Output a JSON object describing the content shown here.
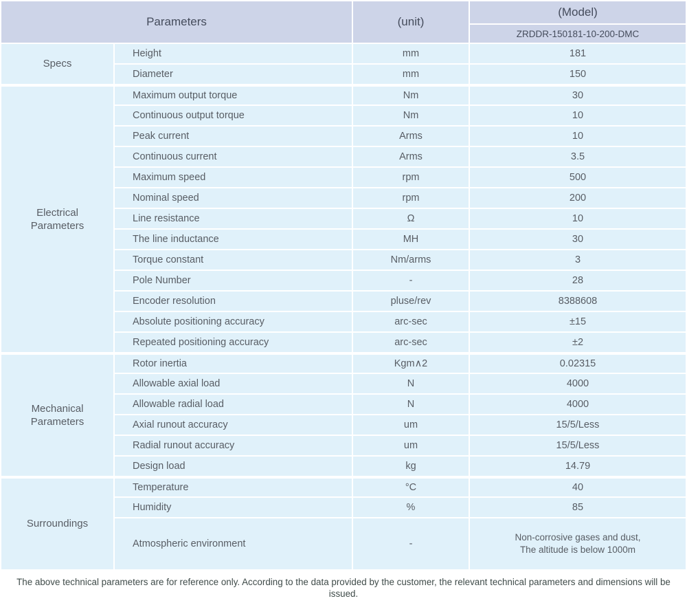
{
  "colors": {
    "header_bg": "#cdd4e8",
    "cell_bg": "#e0f1fa",
    "border": "#ffffff",
    "header_text": "#454c5c",
    "body_text": "#585d64",
    "footnote_text": "#3f4b49"
  },
  "table": {
    "header": {
      "parameters_label": "Parameters",
      "unit_label": "(unit)",
      "model_label": "(Model)",
      "model_value": "ZRDDR-150181-10-200-DMC"
    },
    "groups": [
      {
        "name": "Specs",
        "label_lines": [
          "Specs"
        ],
        "rows": [
          {
            "parameter": "Height",
            "unit": "mm",
            "value": "181"
          },
          {
            "parameter": "Diameter",
            "unit": "mm",
            "value": "150"
          }
        ]
      },
      {
        "name": "Electrical Parameters",
        "label_lines": [
          "Electrical",
          "Parameters"
        ],
        "rows": [
          {
            "parameter": "Maximum output torque",
            "unit": "Nm",
            "value": "30"
          },
          {
            "parameter": "Continuous output torque",
            "unit": "Nm",
            "value": "10"
          },
          {
            "parameter": "Peak current",
            "unit": "Arms",
            "value": "10"
          },
          {
            "parameter": "Continuous current",
            "unit": "Arms",
            "value": "3.5"
          },
          {
            "parameter": "Maximum speed",
            "unit": "rpm",
            "value": "500"
          },
          {
            "parameter": "Nominal speed",
            "unit": "rpm",
            "value": "200"
          },
          {
            "parameter": "Line resistance",
            "unit": "Ω",
            "value": "10"
          },
          {
            "parameter": "The line inductance",
            "unit": "MH",
            "value": "30"
          },
          {
            "parameter": "Torque constant",
            "unit": "Nm/arms",
            "value": "3"
          },
          {
            "parameter": "Pole Number",
            "unit": "-",
            "value": "28"
          },
          {
            "parameter": "Encoder resolution",
            "unit": "pluse/rev",
            "value": "8388608"
          },
          {
            "parameter": "Absolute positioning accuracy",
            "unit": "arc-sec",
            "value": "±15"
          },
          {
            "parameter": "Repeated positioning accuracy",
            "unit": "arc-sec",
            "value": "±2"
          }
        ]
      },
      {
        "name": "Mechanical Parameters",
        "label_lines": [
          "Mechanical",
          "Parameters"
        ],
        "rows": [
          {
            "parameter": "Rotor inertia",
            "unit": "Kgm∧2",
            "value": "0.02315"
          },
          {
            "parameter": "Allowable axial load",
            "unit": "N",
            "value": "4000"
          },
          {
            "parameter": "Allowable radial load",
            "unit": "N",
            "value": "4000"
          },
          {
            "parameter": "Axial runout accuracy",
            "unit": "um",
            "value": "15/5/Less"
          },
          {
            "parameter": "Radial runout accuracy",
            "unit": "um",
            "value": "15/5/Less"
          },
          {
            "parameter": "Design load",
            "unit": "kg",
            "value": "14.79"
          }
        ]
      },
      {
        "name": "Surroundings",
        "label_lines": [
          "Surroundings"
        ],
        "rows": [
          {
            "parameter": "Temperature",
            "unit": "°C",
            "value": "40"
          },
          {
            "parameter": "Humidity",
            "unit": "%",
            "value": "85"
          },
          {
            "parameter": "Atmospheric environment",
            "unit": "-",
            "value_lines": [
              "Non-corrosive gases and dust,",
              "The altitude is below 1000m"
            ],
            "tall": true
          }
        ]
      }
    ],
    "footnote": "The above technical parameters are for reference only. According to the data provided by the customer, the relevant technical parameters and dimensions will be issued."
  }
}
